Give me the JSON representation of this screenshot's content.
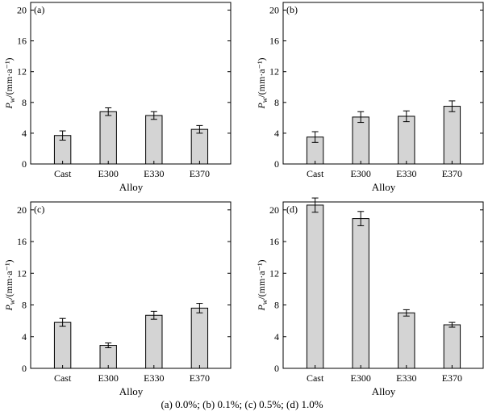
{
  "caption": "(a) 0.0%; (b) 0.1%; (c) 0.5%; (d) 1.0%",
  "chart_data": [
    {
      "type": "bar",
      "panel_label": "(a)",
      "categories": [
        "Cast",
        "E300",
        "E330",
        "E370"
      ],
      "values": [
        3.7,
        6.8,
        6.3,
        4.5
      ],
      "errors": [
        0.6,
        0.5,
        0.5,
        0.5
      ],
      "xlabel": "Alloy",
      "ylabel": "Pw/(mm·a⁻¹)",
      "ylim": [
        0,
        21
      ],
      "yticks": [
        0,
        4,
        8,
        12,
        16,
        20
      ],
      "bar_color": "#d4d4d4"
    },
    {
      "type": "bar",
      "panel_label": "(b)",
      "categories": [
        "Cast",
        "E300",
        "E330",
        "E370"
      ],
      "values": [
        3.5,
        6.1,
        6.2,
        7.5
      ],
      "errors": [
        0.7,
        0.7,
        0.7,
        0.7
      ],
      "xlabel": "Alloy",
      "ylabel": "Pw/(mm·a⁻¹)",
      "ylim": [
        0,
        21
      ],
      "yticks": [
        0,
        4,
        8,
        12,
        16,
        20
      ],
      "bar_color": "#d4d4d4"
    },
    {
      "type": "bar",
      "panel_label": "(c)",
      "categories": [
        "Cast",
        "E300",
        "E330",
        "E370"
      ],
      "values": [
        5.8,
        2.9,
        6.7,
        7.6
      ],
      "errors": [
        0.5,
        0.3,
        0.5,
        0.6
      ],
      "xlabel": "Alloy",
      "ylabel": "Pw/(mm·a⁻¹)",
      "ylim": [
        0,
        21
      ],
      "yticks": [
        0,
        4,
        8,
        12,
        16,
        20
      ],
      "bar_color": "#d4d4d4"
    },
    {
      "type": "bar",
      "panel_label": "(d)",
      "categories": [
        "Cast",
        "E300",
        "E330",
        "E370"
      ],
      "values": [
        20.6,
        18.9,
        7.0,
        5.5
      ],
      "errors": [
        0.9,
        0.9,
        0.4,
        0.3
      ],
      "xlabel": "Alloy",
      "ylabel": "Pw/(mm·a⁻¹)",
      "ylim": [
        0,
        21
      ],
      "yticks": [
        0,
        4,
        8,
        12,
        16,
        20
      ],
      "bar_color": "#d4d4d4"
    }
  ]
}
